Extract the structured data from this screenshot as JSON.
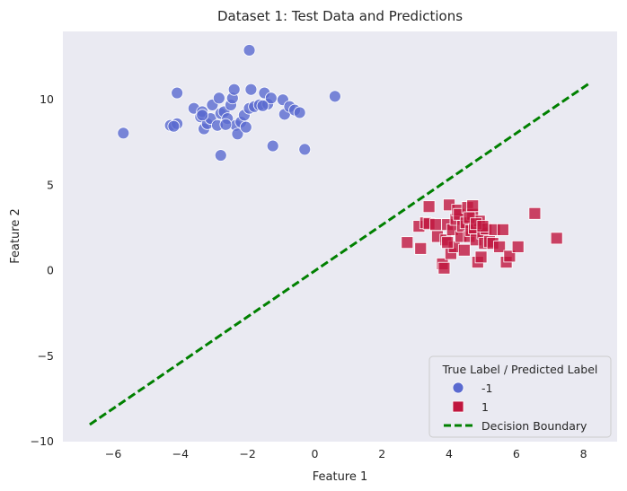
{
  "chart_data": {
    "type": "scatter",
    "title": "Dataset 1: Test Data and Predictions",
    "xlabel": "Feature 1",
    "ylabel": "Feature 2",
    "xlim": [
      -7.5,
      9.0
    ],
    "ylim": [
      -10,
      14
    ],
    "xticks": [
      -6,
      -4,
      -2,
      0,
      2,
      4,
      6,
      8
    ],
    "yticks": [
      -10,
      -5,
      0,
      5,
      10
    ],
    "xtick_labels": [
      "−6",
      "−4",
      "−2",
      "0",
      "2",
      "4",
      "6",
      "8"
    ],
    "ytick_labels": [
      "−10",
      "−5",
      "0",
      "5",
      "10"
    ],
    "grid": false,
    "legend": {
      "title": "True Label / Predicted Label",
      "placement": "lower-right",
      "entries": [
        "-1",
        "1",
        "Decision Boundary"
      ]
    },
    "colors": {
      "class_neg": "#5a6ad0",
      "class_pos": "#c0163e",
      "boundary": "#008000",
      "plot_bg": "#eaeaf2"
    },
    "series": [
      {
        "name": "-1",
        "marker": "circle",
        "points": [
          [
            -5.7,
            8.05
          ],
          [
            -4.1,
            10.4
          ],
          [
            -4.3,
            8.5
          ],
          [
            -4.1,
            8.6
          ],
          [
            -4.2,
            8.45
          ],
          [
            -3.6,
            9.5
          ],
          [
            -3.4,
            9.0
          ],
          [
            -3.35,
            9.3
          ],
          [
            -3.3,
            8.3
          ],
          [
            -3.2,
            8.6
          ],
          [
            -3.1,
            8.9
          ],
          [
            -3.05,
            9.7
          ],
          [
            -2.9,
            8.5
          ],
          [
            -2.85,
            10.1
          ],
          [
            -2.8,
            9.2
          ],
          [
            -2.7,
            9.3
          ],
          [
            -2.6,
            8.9
          ],
          [
            -2.5,
            9.7
          ],
          [
            -2.45,
            10.1
          ],
          [
            -2.4,
            10.6
          ],
          [
            -2.35,
            8.5
          ],
          [
            -2.3,
            8.0
          ],
          [
            -2.2,
            8.7
          ],
          [
            -2.1,
            9.1
          ],
          [
            -2.05,
            8.4
          ],
          [
            -1.95,
            9.5
          ],
          [
            -1.9,
            10.6
          ],
          [
            -1.8,
            9.6
          ],
          [
            -1.65,
            9.7
          ],
          [
            -1.5,
            10.4
          ],
          [
            -1.4,
            9.75
          ],
          [
            -1.3,
            10.1
          ],
          [
            -1.25,
            7.3
          ],
          [
            -0.95,
            10.0
          ],
          [
            -0.9,
            9.15
          ],
          [
            -0.75,
            9.6
          ],
          [
            -0.6,
            9.4
          ],
          [
            -0.45,
            9.25
          ],
          [
            -0.3,
            7.1
          ],
          [
            0.6,
            10.2
          ],
          [
            -1.95,
            12.9
          ],
          [
            -2.8,
            6.75
          ],
          [
            -3.35,
            9.1
          ],
          [
            -2.65,
            8.55
          ],
          [
            -1.55,
            9.65
          ]
        ]
      },
      {
        "name": "1",
        "marker": "square",
        "points": [
          [
            2.75,
            1.65
          ],
          [
            3.1,
            2.6
          ],
          [
            3.15,
            1.3
          ],
          [
            3.3,
            2.8
          ],
          [
            3.4,
            2.75
          ],
          [
            3.4,
            3.75
          ],
          [
            3.6,
            2.7
          ],
          [
            3.65,
            2.0
          ],
          [
            3.8,
            0.4
          ],
          [
            3.85,
            0.15
          ],
          [
            3.9,
            1.8
          ],
          [
            3.95,
            2.7
          ],
          [
            4.0,
            3.85
          ],
          [
            4.05,
            1.0
          ],
          [
            4.1,
            2.4
          ],
          [
            4.15,
            1.4
          ],
          [
            4.2,
            3.0
          ],
          [
            4.25,
            3.55
          ],
          [
            4.3,
            3.3
          ],
          [
            4.35,
            2.0
          ],
          [
            4.4,
            2.6
          ],
          [
            4.45,
            1.2
          ],
          [
            4.5,
            2.8
          ],
          [
            4.55,
            3.7
          ],
          [
            4.6,
            2.0
          ],
          [
            4.65,
            2.35
          ],
          [
            4.7,
            3.3
          ],
          [
            4.7,
            3.8
          ],
          [
            4.75,
            2.5
          ],
          [
            4.8,
            1.8
          ],
          [
            4.85,
            0.5
          ],
          [
            4.9,
            2.9
          ],
          [
            4.95,
            0.8
          ],
          [
            5.0,
            2.2
          ],
          [
            5.05,
            1.6
          ],
          [
            5.1,
            2.45
          ],
          [
            5.2,
            1.7
          ],
          [
            5.3,
            1.6
          ],
          [
            5.35,
            2.4
          ],
          [
            5.5,
            1.4
          ],
          [
            5.6,
            2.4
          ],
          [
            5.7,
            0.5
          ],
          [
            5.8,
            0.85
          ],
          [
            6.05,
            1.4
          ],
          [
            6.55,
            3.35
          ],
          [
            7.2,
            1.9
          ],
          [
            4.6,
            3.1
          ],
          [
            4.8,
            2.75
          ],
          [
            5.0,
            2.6
          ],
          [
            3.95,
            1.65
          ]
        ]
      }
    ],
    "boundary": {
      "x": [
        -6.7,
        8.2
      ],
      "y": [
        -9.0,
        11.0
      ]
    }
  }
}
